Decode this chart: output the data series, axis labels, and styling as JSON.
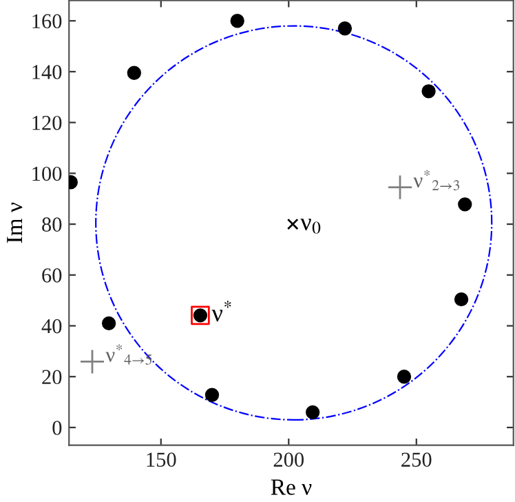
{
  "chart_data": {
    "type": "scatter",
    "xlabel": "Re ν",
    "ylabel": "Im ν",
    "xlim": [
      114,
      288
    ],
    "ylim": [
      -7,
      168
    ],
    "xticks": [
      150,
      200,
      250
    ],
    "yticks": [
      0,
      20,
      40,
      60,
      80,
      100,
      120,
      140,
      160
    ],
    "grid": false,
    "legend": false,
    "series": [
      {
        "color": "#000000",
        "marker": "circle",
        "x": [
          114.7,
          139.5,
          179.9,
          222,
          254.8,
          269,
          267.6,
          245.2,
          209.4,
          170,
          165.4,
          129.6
        ],
        "values": [
          96.5,
          139.5,
          160,
          157,
          132.3,
          87.8,
          50.4,
          20,
          6,
          12.8,
          44.1,
          41
        ]
      },
      {
        "type": "scatter",
        "color": "#ff0000",
        "marker": "square",
        "x": [
          165.4
        ],
        "values": [
          44.1
        ]
      },
      {
        "type": "scatter",
        "color": "#000000",
        "marker": "cross",
        "x": [
          201.6
        ],
        "values": [
          80
        ]
      },
      {
        "type": "scatter",
        "color": "#808080",
        "marker": "plus",
        "x": [
          243.6,
          123.1
        ],
        "values": [
          94.5,
          25.9
        ]
      }
    ],
    "annotations": [
      {
        "text": "ν$_{0}$",
        "x": 201.6,
        "y": 80
      },
      {
        "text": "ν$^{*}$",
        "x": 165.4,
        "y": 44.1
      },
      {
        "text": "ν$^{*}$$_{2→3}$",
        "x": 243.6,
        "y": 94.5
      },
      {
        "text": "ν$^{*}$$_{4→5}$",
        "x": 123.1,
        "y": 25.9
      }
    ]
  }
}
